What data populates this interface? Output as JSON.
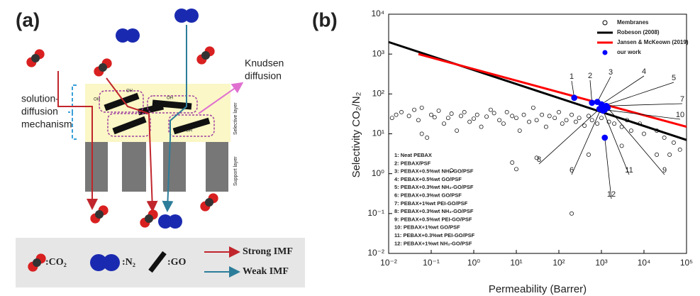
{
  "panel_a": {
    "label": "(a)",
    "knudsen": [
      "Knudsen",
      "diffusion"
    ],
    "mechanism": [
      "solution-",
      "diffusion",
      "mechanism"
    ],
    "selective_layer": "Selective layer",
    "support_layer": "Support layer",
    "oh_labels": [
      "OH",
      "OH",
      "OH",
      "OH"
    ],
    "legend": {
      "co2": ":CO₂",
      "n2": ":N₂",
      "go": ":GO",
      "strong": "Strong IMF",
      "weak": "Weak IMF"
    }
  },
  "chart_data": {
    "type": "scatter",
    "panel_label": "(b)",
    "x_label": "Permeability (Barrer)",
    "y_label": "Selectivity CO₂/N₂",
    "log_x": true,
    "log_y": true,
    "xlim": [
      0.01,
      100000
    ],
    "ylim": [
      0.01,
      10000
    ],
    "xticks": [
      {
        "value": 0.01,
        "label": "10⁻²"
      },
      {
        "value": 0.1,
        "label": "10⁻¹"
      },
      {
        "value": 1,
        "label": "10⁰"
      },
      {
        "value": 10,
        "label": "10¹"
      },
      {
        "value": 100,
        "label": "10²"
      },
      {
        "value": 1000,
        "label": "10³"
      },
      {
        "value": 10000,
        "label": "10⁴"
      },
      {
        "value": 100000,
        "label": "10⁵"
      }
    ],
    "yticks": [
      {
        "value": 0.01,
        "label": "10⁻²"
      },
      {
        "value": 0.1,
        "label": "10⁻¹"
      },
      {
        "value": 1,
        "label": "10⁰"
      },
      {
        "value": 10,
        "label": "10¹"
      },
      {
        "value": 100,
        "label": "10²"
      },
      {
        "value": 1000,
        "label": "10³"
      },
      {
        "value": 10000,
        "label": "10⁴"
      }
    ],
    "legend_position": "upper right",
    "series": [
      {
        "name": "Membranes",
        "style": "open-circle",
        "color": "#000000",
        "x": [
          0.012,
          0.015,
          0.02,
          0.03,
          0.04,
          0.05,
          0.06,
          0.08,
          0.1,
          0.12,
          0.15,
          0.2,
          0.25,
          0.3,
          0.4,
          0.5,
          0.6,
          0.8,
          1,
          1.2,
          1.5,
          2,
          2.5,
          3,
          4,
          5,
          6,
          8,
          10,
          12,
          15,
          20,
          25,
          30,
          40,
          50,
          60,
          80,
          100,
          120,
          150,
          200,
          250,
          300,
          400,
          500,
          600,
          800,
          1000,
          1500,
          2000,
          3000,
          4000,
          5000,
          8000,
          10000,
          20000,
          30000,
          50000,
          70000,
          0.3,
          8,
          10,
          30,
          200,
          0.06,
          500,
          3000,
          20000,
          40000
        ],
        "values": [
          25,
          30,
          35,
          28,
          40,
          22,
          45,
          8,
          30,
          26,
          38,
          18,
          25,
          32,
          12,
          28,
          35,
          20,
          24,
          30,
          15,
          27,
          40,
          33,
          22,
          18,
          35,
          28,
          25,
          12,
          30,
          20,
          45,
          22,
          30,
          15,
          28,
          25,
          35,
          18,
          22,
          30,
          20,
          25,
          16,
          28,
          22,
          18,
          25,
          20,
          18,
          15,
          22,
          12,
          18,
          10,
          12,
          8,
          6,
          4,
          1.2,
          1.9,
          1.3,
          2.5,
          0.1,
          10,
          3,
          5,
          3,
          3
        ]
      },
      {
        "name": "Robeson (2008)",
        "style": "line",
        "color": "#000000",
        "x": [
          0.01,
          100000
        ],
        "values": [
          2000,
          7
        ]
      },
      {
        "name": "Jansen & McKeown (2019)",
        "style": "line",
        "color": "#ff0000",
        "x": [
          0.05,
          100000
        ],
        "values": [
          1000,
          15
        ]
      },
      {
        "name": "our work",
        "style": "filled-circle",
        "color": "#0000ff",
        "x": [
          230,
          600,
          800,
          1000,
          1100,
          1000,
          1300,
          900,
          1400,
          1200,
          1100,
          1200
        ],
        "values": [
          80,
          60,
          63,
          55,
          50,
          45,
          50,
          42,
          45,
          40,
          38,
          8
        ],
        "point_labels": [
          "1",
          "2",
          "3",
          "4",
          "5",
          "6",
          "7",
          "8",
          "9",
          "10",
          "11",
          "12"
        ]
      }
    ],
    "notes": [
      "1: Neat PEBAX",
      "2: PEBAX/PSF",
      "3: PEBAX+0.5%wt NH₂-GO/PSF",
      "4: PEBAX+0.5%wt GO/PSF",
      "5: PEBAX+0.3%wt NH₂-GO/PSF",
      "6: PEBAX+0.3%wt GO/PSF",
      "7: PEBAX+1%wt PEI-GO/PSF",
      "8: PEBAX+0.3%wt NH₂-GO/PSF",
      "9: PEBAX+0.5%wt PEI-GO/PSF",
      "10: PEBAX+1%wt GO/PSF",
      "11: PEBAX+0.3%wt PEI-GO/PSF",
      "12: PEBAX+1%wt NH₂-GO/PSF"
    ]
  }
}
